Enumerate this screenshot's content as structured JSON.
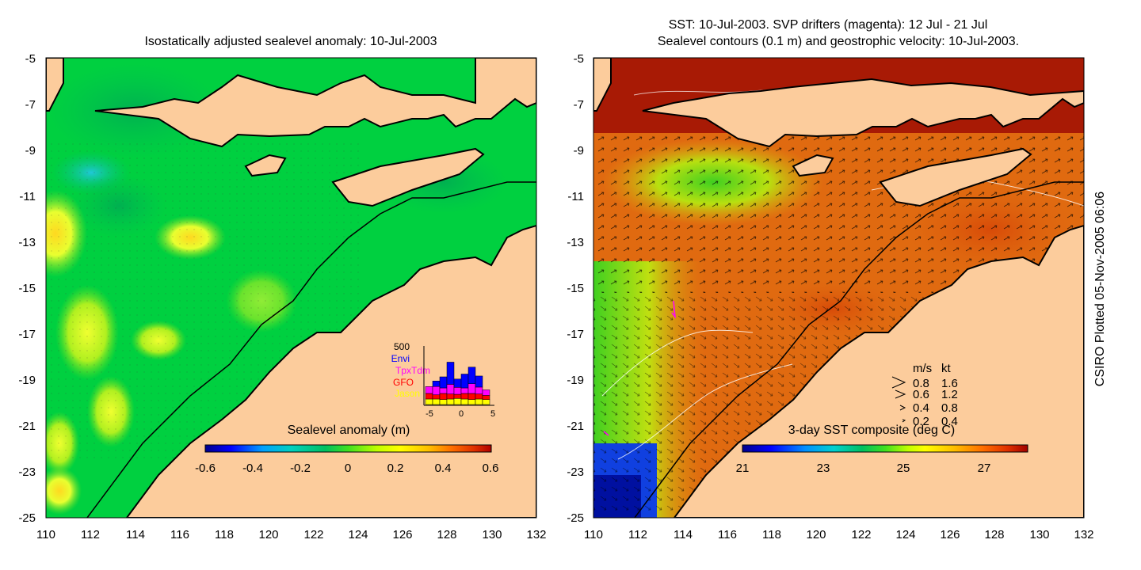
{
  "left_panel": {
    "title": "Isostatically adjusted sealevel anomaly: 10-Jul-2003",
    "y_ticks": [
      "-5",
      "-7",
      "-9",
      "-11",
      "-13",
      "-15",
      "-17",
      "-19",
      "-21",
      "-23",
      "-25"
    ],
    "x_ticks": [
      "110",
      "112",
      "114",
      "116",
      "118",
      "120",
      "122",
      "124",
      "126",
      "128",
      "130",
      "132"
    ],
    "colorbar": {
      "label": "Sealevel anomaly (m)",
      "ticks": [
        "-0.6",
        "-0.4",
        "-0.2",
        "0",
        "0.2",
        "0.4",
        "0.6"
      ],
      "colors": [
        "#00008b",
        "#0000ff",
        "#00a0ff",
        "#00d0c0",
        "#00c060",
        "#40e020",
        "#c0ff00",
        "#ffff00",
        "#ffc000",
        "#ff7000",
        "#e03000",
        "#b00000"
      ]
    },
    "histogram": {
      "ymax_label": "500",
      "legend": [
        {
          "label": "Envi",
          "color": "#0000ff"
        },
        {
          "label": "TpxTdm",
          "color": "#ff00ff"
        },
        {
          "label": "GFO",
          "color": "#ff0000"
        },
        {
          "label": "Jason",
          "color": "#ffff00"
        }
      ],
      "x_ticks": [
        "-5",
        "0",
        "5"
      ],
      "days": [
        -4,
        -3,
        -2,
        -1,
        0,
        1,
        2,
        3,
        4
      ],
      "jason": [
        20,
        20,
        18,
        20,
        22,
        20,
        18,
        20,
        18
      ],
      "gfo": [
        20,
        15,
        22,
        18,
        15,
        20,
        22,
        18,
        15
      ],
      "tpx": [
        25,
        30,
        20,
        35,
        25,
        20,
        35,
        25,
        20
      ],
      "envi": [
        0,
        20,
        40,
        80,
        30,
        50,
        60,
        40,
        0
      ]
    }
  },
  "right_panel": {
    "title_line1": "SST: 10-Jul-2003. SVP drifters (magenta): 12 Jul - 21 Jul",
    "title_line2": "Sealevel contours (0.1 m) and geostrophic velocity: 10-Jul-2003.",
    "y_ticks": [
      "-5",
      "-7",
      "-9",
      "-11",
      "-13",
      "-15",
      "-17",
      "-19",
      "-21",
      "-23",
      "-25"
    ],
    "x_ticks": [
      "110",
      "112",
      "114",
      "116",
      "118",
      "120",
      "122",
      "124",
      "126",
      "128",
      "130",
      "132"
    ],
    "colorbar": {
      "label": "3-day SST composite (deg C)",
      "ticks": [
        "21",
        "23",
        "25",
        "27"
      ],
      "colors": [
        "#00008b",
        "#0000ff",
        "#0090ff",
        "#00d0d0",
        "#00c060",
        "#40e020",
        "#c0ff00",
        "#ffff00",
        "#ffc000",
        "#ff7000",
        "#e03000",
        "#a00000"
      ]
    },
    "velocity_legend": {
      "header_ms": "m/s",
      "header_kt": "kt",
      "rows": [
        {
          "ms": "0.8",
          "kt": "1.6"
        },
        {
          "ms": "0.6",
          "kt": "1.2"
        },
        {
          "ms": "0.4",
          "kt": "0.8"
        },
        {
          "ms": "0.2",
          "kt": "0.4"
        }
      ]
    }
  },
  "credit": "CSIRO Plotted 05-Nov-2005 06:06",
  "colors": {
    "land": "#fccc9c",
    "sea_left_base": "#00d040",
    "sea_right_base": "#e06a10"
  }
}
